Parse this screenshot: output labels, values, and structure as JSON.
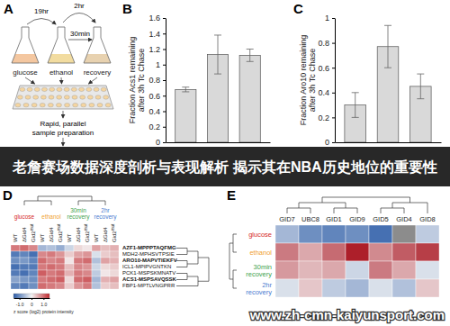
{
  "diagram": {
    "label": "A",
    "times": [
      "19hr",
      "30min",
      "2hr"
    ],
    "flasks": [
      "glucose",
      "ethanol",
      "recovery"
    ],
    "prep": [
      "Rapid, parallel",
      "sample preparation"
    ]
  },
  "chart_data": [
    {
      "type": "bar",
      "panel_label": "B",
      "y_label": "Fraction Acs1 remaining after 3h Tc Chase",
      "categories": [
        null,
        null,
        null
      ],
      "values": [
        0.68,
        1.13,
        1.12
      ],
      "errors": [
        0.03,
        0.25,
        0.08
      ],
      "color": "#d9d9d9",
      "ylim": [
        0,
        1.6
      ],
      "yticks": [
        0,
        0.2,
        0.4,
        0.6,
        0.8,
        1,
        1.2,
        1.4,
        1.6
      ],
      "tick_labels": "y"
    },
    {
      "type": "bar",
      "panel_label": "C",
      "y_label": "Fraction Aro10 remaining after 3h Tc Chase",
      "categories": [
        null,
        null,
        null
      ],
      "values": [
        0.3,
        0.77,
        0.45
      ],
      "errors": [
        0.1,
        0.17,
        0.1
      ],
      "color": "#d9d9d9",
      "ylim": [
        0,
        1
      ],
      "yticks": [
        0,
        0.2,
        0.4,
        0.6,
        0.8,
        1
      ],
      "tick_labels": "y"
    },
    {
      "type": "heatmap",
      "panel_label": "D",
      "groups": [
        {
          "name": "glucose",
          "color": "#d62728"
        },
        {
          "name": "ethanol",
          "color": "#f0a030"
        },
        {
          "name": "30min recovery",
          "color": "#3fa34d"
        },
        {
          "name": "2hr recovery",
          "color": "#4a7bd0"
        }
      ],
      "columns": [
        [
          "WT"
        ],
        [
          "ΔGid4"
        ],
        [
          "Gid2",
          "mut"
        ],
        [
          "WT"
        ],
        [
          "ΔGid4"
        ],
        [
          "Gid2",
          "mut"
        ],
        [
          "WT"
        ],
        [
          "ΔGid4"
        ],
        [
          "Gid2",
          "mut"
        ],
        [
          "WT"
        ],
        [
          "ΔGid4"
        ],
        [
          "Gid2",
          "mut"
        ]
      ],
      "rows": [
        "AZF1-MPPPTAQFMG",
        "MDH2-MPHSVTPSIE",
        "ARO10-MAPVTIEKFV",
        "ICL1-MPIPVGNTKN",
        "PCK1-MSPSKMNATV",
        "ACS1-MSPSAVQSSK",
        "FBP1-MPTLVNGPRR"
      ],
      "emphasis": [
        true,
        false,
        true,
        false,
        false,
        true,
        false
      ],
      "values": [
        [
          0.9,
          1.0,
          0.8,
          -0.6,
          -0.5,
          -0.7,
          -0.3,
          0.2,
          0.1,
          0.6,
          0.4,
          0.5
        ],
        [
          -1.2,
          -1.1,
          -1.3,
          0.8,
          0.9,
          0.7,
          0.3,
          0.6,
          0.7,
          -0.2,
          0.3,
          0.4
        ],
        [
          -1.0,
          -0.9,
          -1.1,
          1.0,
          0.8,
          0.9,
          0.1,
          0.9,
          1.0,
          -0.5,
          0.6,
          0.5
        ],
        [
          -1.3,
          -1.2,
          -1.2,
          0.9,
          1.0,
          0.9,
          0.4,
          0.8,
          0.7,
          -0.3,
          0.2,
          0.3
        ],
        [
          -1.2,
          -1.3,
          -1.1,
          1.1,
          0.9,
          1.0,
          0.5,
          0.9,
          0.8,
          -0.4,
          0.1,
          0.2
        ],
        [
          -0.8,
          -0.9,
          -1.0,
          0.9,
          1.0,
          1.1,
          0.2,
          1.0,
          1.1,
          -0.6,
          0.5,
          0.6
        ],
        [
          -1.1,
          -1.2,
          -1.0,
          1.0,
          0.9,
          0.8,
          0.3,
          0.7,
          0.9,
          -0.5,
          0.3,
          0.4
        ]
      ],
      "colorbar": {
        "label": "z score (log2) protein intensity",
        "range": [
          -1.5,
          1.5
        ],
        "ticks": [
          {
            "value": -1,
            "label": "-1.0"
          },
          0,
          {
            "value": 1,
            "label": "1.0"
          }
        ]
      }
    },
    {
      "type": "heatmap",
      "panel_label": "E",
      "columns": [
        "GID7",
        "UBC8",
        "GID1",
        "GID9",
        "GID5",
        "GID4",
        "GID8"
      ],
      "rows": [
        {
          "name": "glucose",
          "color": "#d62728"
        },
        {
          "name": "ethanol",
          "color": "#f0a030"
        },
        {
          "name": "30min recovery",
          "color": "#3fa34d"
        },
        {
          "name": "2hr recovery",
          "color": "#4a7bd0"
        }
      ],
      "values": [
        [
          -0.6,
          -1.0,
          -1.1,
          -1.0,
          -1.3,
          null,
          -0.4
        ],
        [
          0.8,
          0.5,
          0.9,
          1.4,
          0.7,
          1.0,
          1.2
        ],
        [
          0.6,
          0.4,
          0.5,
          -0.3,
          0.8,
          0.5,
          -0.2
        ],
        [
          -0.2,
          0.3,
          -0.4,
          -0.6,
          -0.2,
          -0.5,
          0.3
        ]
      ],
      "color_range": [
        -1.5,
        1.5
      ]
    }
  ],
  "banner": "老詹赛场数据深度剖析与表现解析 揭示其在NBA历史地位的重要性",
  "watermark": "www.zh-cmn-kaiyunsport.com"
}
